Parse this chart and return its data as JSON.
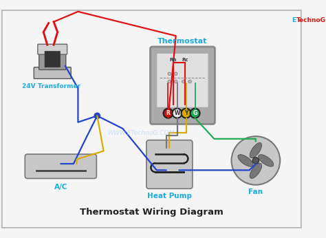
{
  "title": "Thermostat Wiring Diagram",
  "bg_color": "#f5f5f5",
  "border_color": "#cccccc",
  "label_color": "#1aacdc",
  "title_color": "#222222",
  "watermark": "WWW.ETechnoG.COM",
  "brand_e": "E",
  "brand_rest": "TechnoG",
  "transformer_label": "24V Transformer",
  "ac_label": "A/C",
  "heatpump_label": "Heat Pump",
  "fan_label": "Fan",
  "thermostat_label": "Thermostat",
  "wire_red": "#dd1111",
  "wire_blue": "#2244cc",
  "wire_yellow": "#ddaa00",
  "wire_green": "#22aa55",
  "wire_gray": "#777777",
  "terminal_labels": [
    "R",
    "W",
    "Y",
    "G"
  ],
  "terminal_colors": [
    "#cc1111",
    "#e8e8e8",
    "#ddaa00",
    "#22aa55"
  ],
  "terminal_text_colors": [
    "#ffffff",
    "#333333",
    "#333333",
    "#ffffff"
  ]
}
